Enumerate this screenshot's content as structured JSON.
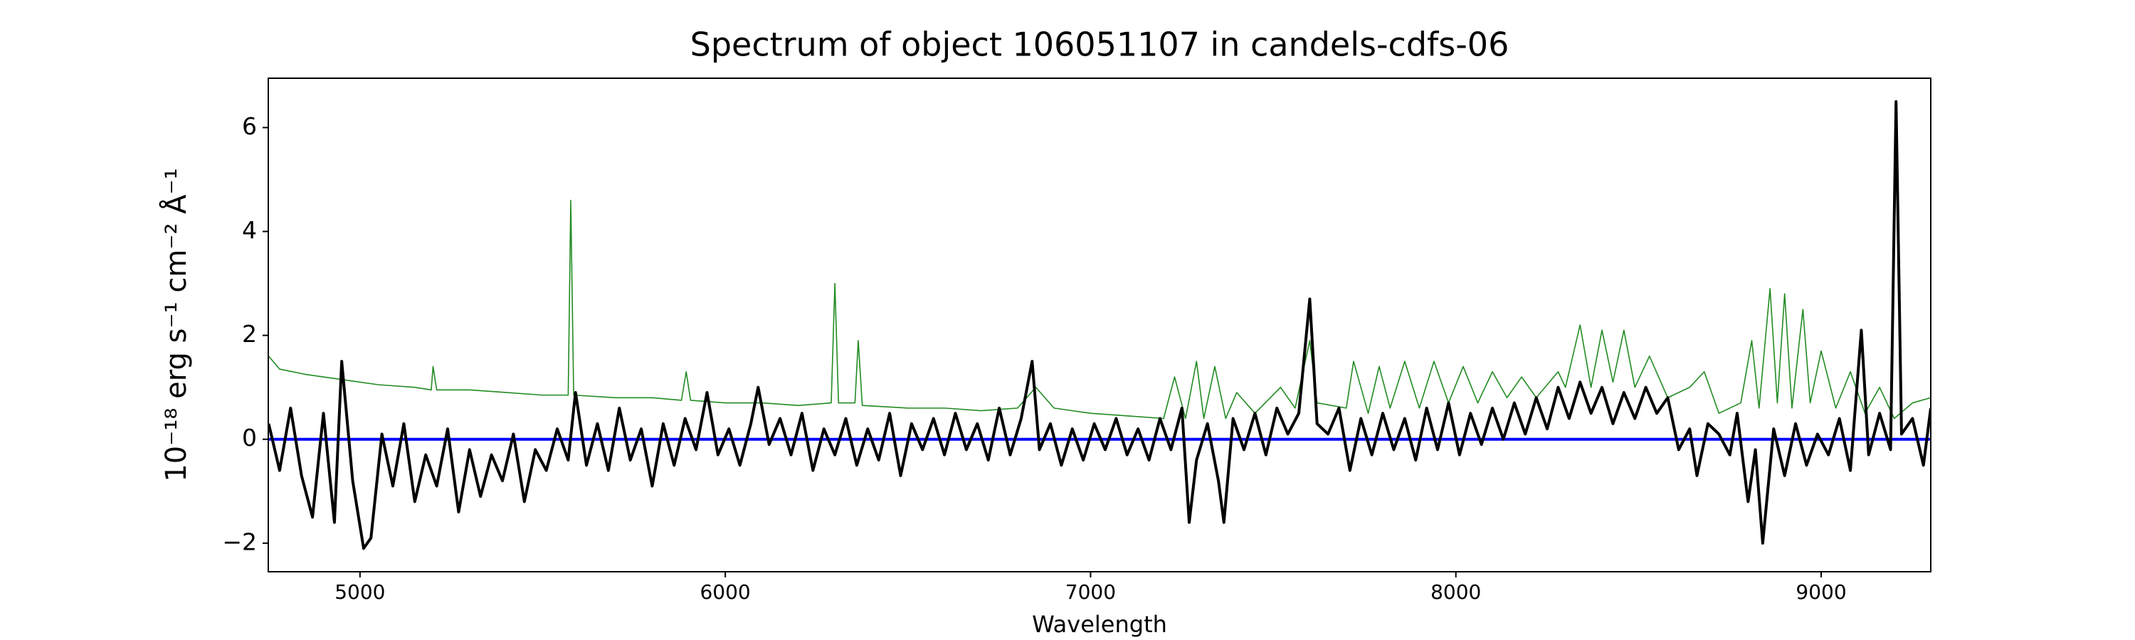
{
  "chart_data": {
    "type": "line",
    "title": "Spectrum of object 106051107 in candels-cdfs-06",
    "x_label": "Wavelength",
    "y_label": "10⁻¹⁸ erg s⁻¹ cm⁻² Å⁻¹",
    "xlim": [
      4749,
      9300
    ],
    "ylim": [
      -2.55,
      6.95
    ],
    "xticks": [
      5000,
      6000,
      7000,
      8000,
      9000
    ],
    "yticks": [
      -2,
      0,
      2,
      4,
      6
    ],
    "grid": false,
    "series": [
      {
        "color": "#228b22",
        "width": 1.6,
        "x": [
          4750,
          4780,
          4850,
          4950,
          5050,
          5150,
          5195,
          5200,
          5210,
          5300,
          5400,
          5500,
          5570,
          5577,
          5585,
          5700,
          5800,
          5880,
          5893,
          5905,
          6000,
          6100,
          6200,
          6290,
          6300,
          6310,
          6355,
          6364,
          6375,
          6500,
          6600,
          6700,
          6800,
          6850,
          6900,
          7000,
          7100,
          7200,
          7230,
          7260,
          7290,
          7310,
          7340,
          7370,
          7400,
          7450,
          7520,
          7560,
          7600,
          7620,
          7700,
          7720,
          7760,
          7790,
          7820,
          7860,
          7900,
          7940,
          7980,
          8020,
          8060,
          8100,
          8140,
          8180,
          8220,
          8280,
          8300,
          8340,
          8370,
          8400,
          8430,
          8460,
          8490,
          8530,
          8580,
          8640,
          8680,
          8720,
          8780,
          8810,
          8830,
          8860,
          8880,
          8900,
          8920,
          8950,
          8970,
          9000,
          9040,
          9080,
          9120,
          9160,
          9200,
          9250,
          9300
        ],
        "values": [
          1.6,
          1.35,
          1.25,
          1.15,
          1.05,
          1.0,
          0.95,
          1.4,
          0.95,
          0.95,
          0.9,
          0.85,
          0.85,
          4.6,
          0.85,
          0.8,
          0.8,
          0.75,
          1.3,
          0.75,
          0.7,
          0.7,
          0.65,
          0.7,
          3.0,
          0.7,
          0.7,
          1.9,
          0.65,
          0.6,
          0.6,
          0.55,
          0.6,
          1.0,
          0.6,
          0.5,
          0.45,
          0.4,
          1.2,
          0.4,
          1.5,
          0.4,
          1.4,
          0.4,
          0.9,
          0.5,
          1.0,
          0.6,
          1.9,
          0.7,
          0.6,
          1.5,
          0.5,
          1.4,
          0.6,
          1.5,
          0.6,
          1.5,
          0.7,
          1.4,
          0.7,
          1.3,
          0.8,
          1.2,
          0.8,
          1.3,
          1.0,
          2.2,
          1.0,
          2.1,
          1.1,
          2.1,
          1.0,
          1.6,
          0.8,
          1.0,
          1.3,
          0.5,
          0.7,
          1.9,
          0.6,
          2.9,
          0.7,
          2.8,
          0.6,
          2.5,
          0.7,
          1.7,
          0.6,
          1.3,
          0.5,
          1.0,
          0.4,
          0.7,
          0.8
        ]
      },
      {
        "color": "#0000ff",
        "width": 4,
        "x": [
          4750,
          9300
        ],
        "values": [
          0,
          0
        ]
      },
      {
        "color": "#000000",
        "width": 4,
        "x": [
          4750,
          4780,
          4810,
          4840,
          4870,
          4900,
          4930,
          4950,
          4980,
          5010,
          5030,
          5060,
          5090,
          5120,
          5150,
          5180,
          5210,
          5240,
          5270,
          5300,
          5330,
          5360,
          5390,
          5420,
          5450,
          5480,
          5510,
          5540,
          5570,
          5590,
          5620,
          5650,
          5680,
          5710,
          5740,
          5770,
          5800,
          5830,
          5860,
          5890,
          5920,
          5950,
          5980,
          6010,
          6040,
          6070,
          6090,
          6120,
          6150,
          6180,
          6210,
          6240,
          6270,
          6300,
          6330,
          6360,
          6390,
          6420,
          6450,
          6480,
          6510,
          6540,
          6570,
          6600,
          6630,
          6660,
          6690,
          6720,
          6750,
          6780,
          6810,
          6840,
          6860,
          6890,
          6920,
          6950,
          6980,
          7010,
          7040,
          7070,
          7100,
          7130,
          7160,
          7190,
          7220,
          7250,
          7270,
          7290,
          7320,
          7350,
          7365,
          7390,
          7420,
          7450,
          7480,
          7510,
          7540,
          7570,
          7600,
          7620,
          7650,
          7680,
          7710,
          7740,
          7770,
          7800,
          7830,
          7860,
          7890,
          7920,
          7950,
          7980,
          8010,
          8040,
          8070,
          8100,
          8130,
          8160,
          8190,
          8220,
          8250,
          8280,
          8310,
          8340,
          8370,
          8400,
          8430,
          8460,
          8490,
          8520,
          8550,
          8580,
          8610,
          8640,
          8660,
          8690,
          8720,
          8750,
          8770,
          8800,
          8820,
          8840,
          8870,
          8900,
          8930,
          8960,
          8990,
          9020,
          9050,
          9080,
          9110,
          9130,
          9160,
          9190,
          9205,
          9220,
          9250,
          9280,
          9300
        ],
        "values": [
          0.3,
          -0.6,
          0.6,
          -0.7,
          -1.5,
          0.5,
          -1.6,
          1.5,
          -0.8,
          -2.1,
          -1.9,
          0.1,
          -0.9,
          0.3,
          -1.2,
          -0.3,
          -0.9,
          0.2,
          -1.4,
          -0.2,
          -1.1,
          -0.3,
          -0.8,
          0.1,
          -1.2,
          -0.2,
          -0.6,
          0.2,
          -0.4,
          0.9,
          -0.5,
          0.3,
          -0.6,
          0.6,
          -0.4,
          0.2,
          -0.9,
          0.3,
          -0.5,
          0.4,
          -0.2,
          0.9,
          -0.3,
          0.2,
          -0.5,
          0.3,
          1.0,
          -0.1,
          0.4,
          -0.3,
          0.5,
          -0.6,
          0.2,
          -0.3,
          0.4,
          -0.5,
          0.2,
          -0.4,
          0.5,
          -0.7,
          0.3,
          -0.2,
          0.4,
          -0.3,
          0.5,
          -0.2,
          0.3,
          -0.4,
          0.6,
          -0.3,
          0.4,
          1.5,
          -0.2,
          0.3,
          -0.5,
          0.2,
          -0.4,
          0.3,
          -0.2,
          0.4,
          -0.3,
          0.2,
          -0.4,
          0.4,
          -0.2,
          0.6,
          -1.6,
          -0.4,
          0.3,
          -0.8,
          -1.6,
          0.4,
          -0.2,
          0.5,
          -0.3,
          0.6,
          0.1,
          0.5,
          2.7,
          0.3,
          0.1,
          0.6,
          -0.6,
          0.4,
          -0.3,
          0.5,
          -0.2,
          0.4,
          -0.4,
          0.6,
          -0.2,
          0.7,
          -0.3,
          0.5,
          -0.1,
          0.6,
          0.0,
          0.7,
          0.1,
          0.8,
          0.2,
          1.0,
          0.4,
          1.1,
          0.5,
          1.0,
          0.3,
          0.9,
          0.4,
          1.0,
          0.5,
          0.8,
          -0.2,
          0.2,
          -0.7,
          0.3,
          0.1,
          -0.3,
          0.5,
          -1.2,
          -0.2,
          -2.0,
          0.2,
          -0.7,
          0.3,
          -0.5,
          0.1,
          -0.3,
          0.4,
          -0.6,
          2.1,
          -0.3,
          0.5,
          -0.2,
          6.5,
          0.1,
          0.4,
          -0.5,
          0.6
        ]
      }
    ]
  }
}
